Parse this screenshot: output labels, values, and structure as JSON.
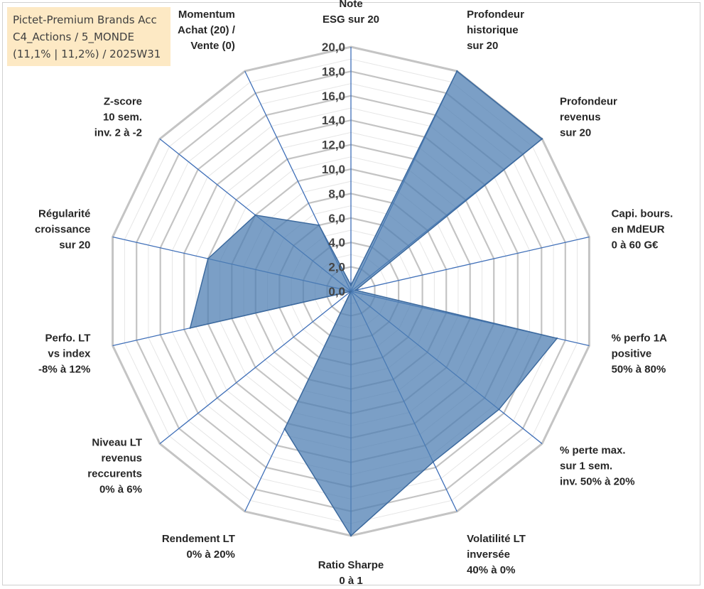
{
  "title": {
    "lines": [
      "Pictet-Premium Brands Acc",
      "C4_Actions / 5_MONDE",
      "(11,1% | 11,2%) / 2025W31"
    ]
  },
  "chart_data": {
    "type": "radar",
    "axes": [
      {
        "label": [
          "Note",
          "ESG sur 20"
        ]
      },
      {
        "label": [
          "Profondeur",
          "historique",
          "sur 20"
        ]
      },
      {
        "label": [
          "Profondeur",
          "revenus",
          "sur 20"
        ]
      },
      {
        "label": [
          "Capi. bours.",
          "en MdEUR",
          "0 à 60 G€"
        ]
      },
      {
        "label": [
          "% perfo 1A",
          "positive",
          "50% à 80%"
        ]
      },
      {
        "label": [
          "% perte max.",
          "sur 1 sem.",
          "inv. 50% à 20%"
        ]
      },
      {
        "label": [
          "Volatilité LT",
          "inversée",
          "40% à 0%"
        ]
      },
      {
        "label": [
          "Ratio Sharpe",
          "0 à 1"
        ]
      },
      {
        "label": [
          "Rendement LT",
          "0% à 20%"
        ]
      },
      {
        "label": [
          "Niveau LT",
          "revenus",
          "reccurents",
          "0% à 6%"
        ]
      },
      {
        "label": [
          "Perfo. LT",
          "vs index",
          "-8% à 12%"
        ]
      },
      {
        "label": [
          "Régularité",
          "croissance",
          "sur 20"
        ]
      },
      {
        "label": [
          "Z-score",
          "10 sem.",
          "inv. 2 à -2"
        ]
      },
      {
        "label": [
          "Momentum",
          "Achat (20) /",
          "Vente (0)"
        ]
      }
    ],
    "values": [
      0.5,
      20,
      20,
      0.4,
      17.3,
      15.5,
      15.5,
      20,
      12.5,
      0,
      13.5,
      12.0,
      10.0,
      6.0
    ],
    "rmin": 0,
    "rmax": 20,
    "ticks": [
      "0,0",
      "2,0",
      "4,0",
      "6,0",
      "8,0",
      "10,0",
      "12,0",
      "14,0",
      "16,0",
      "18,0",
      "20,0"
    ],
    "tick_step": 2,
    "gridlines": "polygon",
    "colors": {
      "fill": "#4f7fb3",
      "outline": "#3d6a9e",
      "spoke": "#3f6fb8",
      "grid_major": "#c4c4c4",
      "grid_minor": "#e6e6e6"
    }
  }
}
